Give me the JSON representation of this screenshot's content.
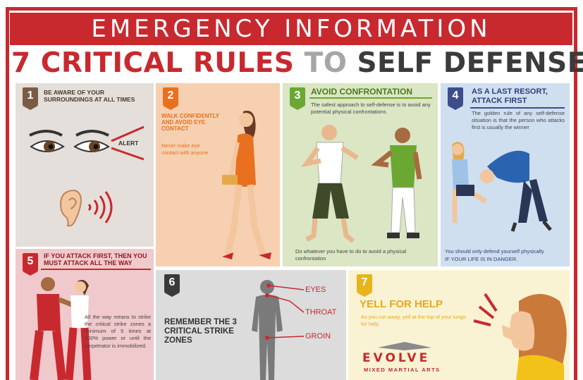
{
  "banner": {
    "title": "EMERGENCY INFORMATION"
  },
  "headline": {
    "part1": "7 CRITICAL RULES ",
    "part2": "TO ",
    "part3": "SELF DEFENSE"
  },
  "rules": [
    {
      "number": "1",
      "title": "BE AWARE OF YOUR SURROUNDINGS AT ALL TIMES",
      "label": "ALERT"
    },
    {
      "number": "2",
      "title": "WALK CONFIDENTLY AND AVOID EYE CONTACT",
      "body": "Never make eye contact with anyone"
    },
    {
      "number": "3",
      "title": "AVOID CONFRONTATION",
      "body": "The safest approach to self-defense is to avoid any potential physical confrontations",
      "footer": "Do whatever you have to do to avoid a physical confrontation"
    },
    {
      "number": "4",
      "title": "AS A LAST RESORT, ATTACK FIRST",
      "body": "The golden rule of any self-defense situation is that the person who attacks first is usually the winner",
      "footer": "You should only defend yourself physically",
      "footer_caps": "IF YOUR LIFE IS IN DANGER."
    },
    {
      "number": "5",
      "title": "IF YOU ATTACK FIRST, THEN YOU MUST ATTACK ALL THE WAY",
      "body": "All the way means to strike the critical strike zones a minimum of 5 times at 100% power or until the perpetrator is immobilized."
    },
    {
      "number": "6",
      "title": "REMEMBER THE 3 CRITICAL STRIKE ZONES",
      "zones": [
        "EYES",
        "THROAT",
        "GROIN"
      ]
    },
    {
      "number": "7",
      "title": "YELL FOR HELP",
      "body": "As you run away, yell at the top of your lungs for help"
    }
  ],
  "brand": {
    "name": "EVOLVE",
    "tagline": "MIXED MARTIAL ARTS"
  },
  "colors": {
    "red": "#c8292f",
    "brown": "#7a5c45",
    "orange": "#e8701f",
    "green": "#6aa832",
    "navy": "#3d4d8c",
    "dark": "#3a3a3a",
    "yellow": "#e7b51b"
  }
}
